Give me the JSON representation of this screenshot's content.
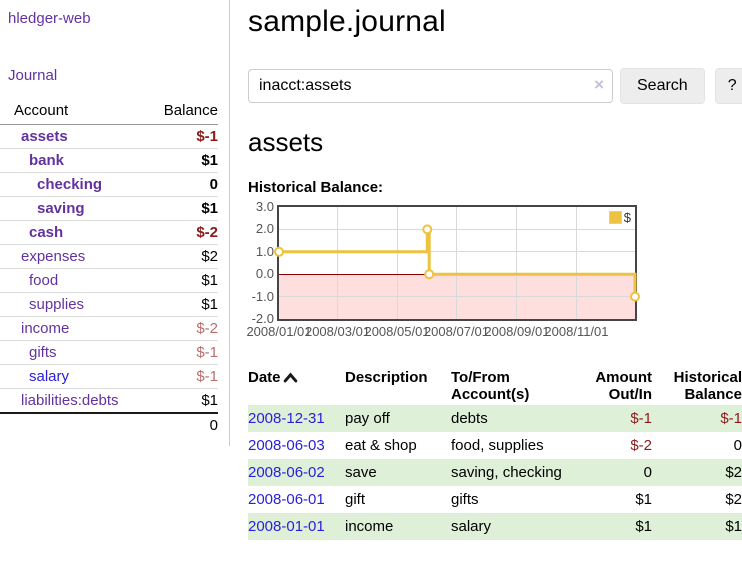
{
  "app": {
    "title": "hledger-web",
    "nav_journal": "Journal"
  },
  "colors": {
    "link_purple": "#6432a0",
    "link_blue": "#281edc",
    "negative_strong": "#8c1a1a",
    "negative_muted": "#bb6d6d",
    "row_green": "#dff0d8",
    "chart_line": "#edc240",
    "chart_negative_fill": "#ffdede",
    "chart_zero_line": "#8b0000"
  },
  "sidebar": {
    "table": {
      "col_account": "Account",
      "col_balance": "Balance"
    },
    "accounts": [
      {
        "name": "assets",
        "balance": "$-1",
        "level": 1,
        "bold": true,
        "neg": "strong"
      },
      {
        "name": "bank",
        "balance": "$1",
        "level": 2,
        "bold": true
      },
      {
        "name": "checking",
        "balance": "0",
        "level": 3,
        "bold": true
      },
      {
        "name": "saving",
        "balance": "$1",
        "level": 3,
        "bold": true
      },
      {
        "name": "cash",
        "balance": "$-2",
        "level": 2,
        "bold": true,
        "neg": "strong"
      },
      {
        "name": "expenses",
        "balance": "$2",
        "level": 1
      },
      {
        "name": "food",
        "balance": "$1",
        "level": 2
      },
      {
        "name": "supplies",
        "balance": "$1",
        "level": 2
      },
      {
        "name": "income",
        "balance": "$-2",
        "level": 1,
        "neg": "muted"
      },
      {
        "name": "gifts",
        "balance": "$-1",
        "level": 2,
        "neg": "muted"
      },
      {
        "name": "salary",
        "balance": "$-1",
        "level": 2,
        "neg": "muted",
        "link_color": "blue"
      },
      {
        "name": "liabilities:debts",
        "balance": "$1",
        "level": 1
      }
    ],
    "total": "0"
  },
  "header": {
    "title": "sample.journal"
  },
  "search": {
    "value": "inacct:assets",
    "clear_icon": "×",
    "button": "Search",
    "help_button": "?"
  },
  "account_page": {
    "title": "assets",
    "chart_label": "Historical Balance:"
  },
  "chart_data": {
    "type": "line",
    "title": "Historical Balance",
    "step": true,
    "x_min": "2008-01-01",
    "x_max": "2008-12-31",
    "ylim": [
      -2,
      3
    ],
    "y_ticks": [
      3.0,
      2.0,
      1.0,
      0.0,
      -1.0,
      -2.0
    ],
    "x_ticks": [
      "2008/01/01",
      "2008/03/01",
      "2008/05/01",
      "2008/07/01",
      "2008/09/01",
      "2008/11/01"
    ],
    "grid": true,
    "legend_position": "top-right",
    "series": [
      {
        "name": "$",
        "color": "#edc240",
        "points": [
          [
            "2008-01-01",
            1
          ],
          [
            "2008-06-01",
            2
          ],
          [
            "2008-06-03",
            0
          ],
          [
            "2008-12-31",
            -1
          ]
        ]
      }
    ],
    "negative_region_fill": "#ffdede",
    "zero_line_color": "#8b0000"
  },
  "register": {
    "columns": [
      "Date",
      "Description",
      "To/From Account(s)",
      "Amount Out/In",
      "Historical Balance"
    ],
    "sort": {
      "column": "Date",
      "direction": "asc"
    },
    "rows": [
      {
        "date": "2008-12-31",
        "description": "pay off",
        "accounts": "debts",
        "amount": "$-1",
        "balance": "$-1"
      },
      {
        "date": "2008-06-03",
        "description": "eat & shop",
        "accounts": "food, supplies",
        "amount": "$-2",
        "balance": "0"
      },
      {
        "date": "2008-06-02",
        "description": "save",
        "accounts": "saving, checking",
        "amount": "0",
        "balance": "$2"
      },
      {
        "date": "2008-06-01",
        "description": "gift",
        "accounts": "gifts",
        "amount": "$1",
        "balance": "$2"
      },
      {
        "date": "2008-01-01",
        "description": "income",
        "accounts": "salary",
        "amount": "$1",
        "balance": "$1"
      }
    ]
  }
}
